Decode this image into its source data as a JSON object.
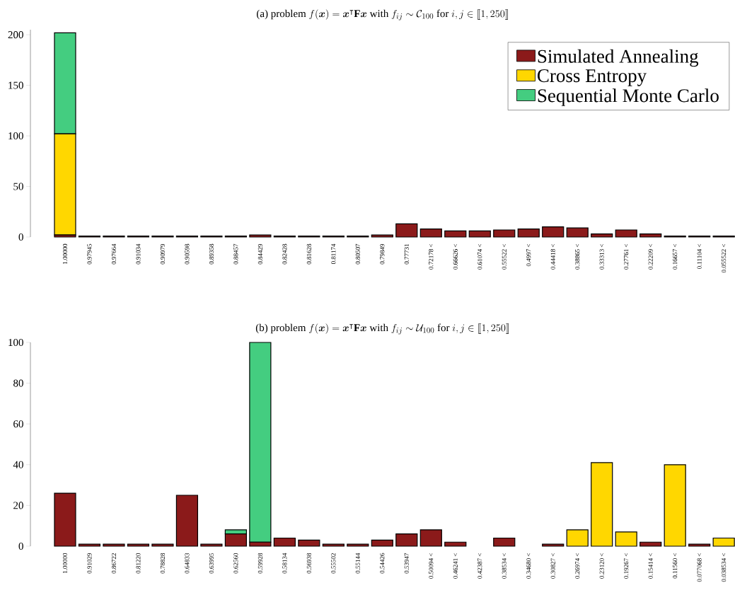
{
  "chart_data": [
    {
      "type": "bar",
      "title": "\\text{(a) problem } f(\\boldsymbol{x}) = \\boldsymbol{x}^{\\intercal}\\mathbf{F}\\boldsymbol{x} \\text{ with } f_{ij} \\sim \\mathcal{C}_{100} \\text{ for } i,j \\in \\llbracket 1,250 \\rrbracket",
      "categories": [
        "1.00000",
        "0.97945",
        "0.97664",
        "0.91034",
        "0.90979",
        "0.90598",
        "0.89358",
        "0.88457",
        "0.84429",
        "0.82428",
        "0.81628",
        "0.81174",
        "0.80507",
        "0.79849",
        "0.77731",
        "0.72178 <",
        "0.66626 <",
        "0.61074 <",
        "0.55522 <",
        "0.4997 <",
        "0.44418 <",
        "0.38865 <",
        "0.33313 <",
        "0.27761 <",
        "0.22209 <",
        "0.16657 <",
        "0.11104 <",
        "0.055522 <"
      ],
      "series": [
        {
          "name": "Simulated Annealing",
          "color": "#8b1a1a",
          "values": [
            2,
            1,
            1,
            1,
            1,
            1,
            1,
            1,
            2,
            1,
            1,
            1,
            1,
            2,
            13,
            8,
            6,
            6,
            7,
            8,
            10,
            9,
            3,
            7,
            3,
            1,
            1,
            1
          ]
        },
        {
          "name": "Cross Entropy",
          "color": "#ffd700",
          "values": [
            100,
            0,
            0,
            0,
            0,
            0,
            0,
            0,
            0,
            0,
            0,
            0,
            0,
            0,
            0,
            0,
            0,
            0,
            0,
            0,
            0,
            0,
            0,
            0,
            0,
            0,
            0,
            0
          ]
        },
        {
          "name": "Sequential Monte Carlo",
          "color": "#44cd80",
          "values": [
            100,
            0,
            0,
            0,
            0,
            0,
            0,
            0,
            0,
            0,
            0,
            0,
            0,
            0,
            0,
            0,
            0,
            0,
            0,
            0,
            0,
            0,
            0,
            0,
            0,
            0,
            0,
            0
          ]
        }
      ],
      "stacked": true,
      "ylim": [
        0,
        205
      ],
      "yticks": [
        0,
        50,
        100,
        150,
        200
      ],
      "legend": "top right",
      "grid": false
    },
    {
      "type": "bar",
      "title": "\\text{(b) problem } f(\\boldsymbol{x}) = \\boldsymbol{x}^{\\intercal}\\mathbf{F}\\boldsymbol{x} \\text{ with } f_{ij} \\sim \\mathcal{U}_{100} \\text{ for } i,j \\in \\llbracket 1,250 \\rrbracket",
      "categories": [
        "1.00000",
        "0.91029",
        "0.86722",
        "0.81220",
        "0.78828",
        "0.64833",
        "0.63995",
        "0.62560",
        "0.59928",
        "0.58134",
        "0.56938",
        "0.55502",
        "0.55144",
        "0.54426",
        "0.53947",
        "0.50094 <",
        "0.46241 <",
        "0.42387 <",
        "0.38534 <",
        "0.34680 <",
        "0.30827 <",
        "0.26974 <",
        "0.23120 <",
        "0.19267 <",
        "0.15414 <",
        "0.11560 <",
        "0.077068 <",
        "0.038534 <"
      ],
      "series": [
        {
          "color": "#8b1a1a",
          "values": [
            26,
            1,
            1,
            1,
            1,
            25,
            1,
            6,
            2,
            4,
            3,
            1,
            1,
            3,
            6,
            8,
            2,
            0,
            4,
            0,
            1,
            0,
            0,
            0,
            2,
            0,
            1,
            0
          ]
        },
        {
          "color": "#ffd700",
          "values": [
            0,
            0,
            0,
            0,
            0,
            0,
            0,
            0,
            0,
            0,
            0,
            0,
            0,
            0,
            0,
            0,
            0,
            0,
            0,
            0,
            0,
            8,
            41,
            7,
            0,
            40,
            0,
            4
          ]
        },
        {
          "color": "#44cd80",
          "values": [
            0,
            0,
            0,
            0,
            0,
            0,
            0,
            2,
            98,
            0,
            0,
            0,
            0,
            0,
            0,
            0,
            0,
            0,
            0,
            0,
            0,
            0,
            0,
            0,
            0,
            0,
            0,
            0
          ]
        }
      ],
      "stacked": true,
      "ylim": [
        0,
        100
      ],
      "yticks": [
        0,
        20,
        40,
        60,
        80,
        100
      ],
      "grid": false
    }
  ]
}
